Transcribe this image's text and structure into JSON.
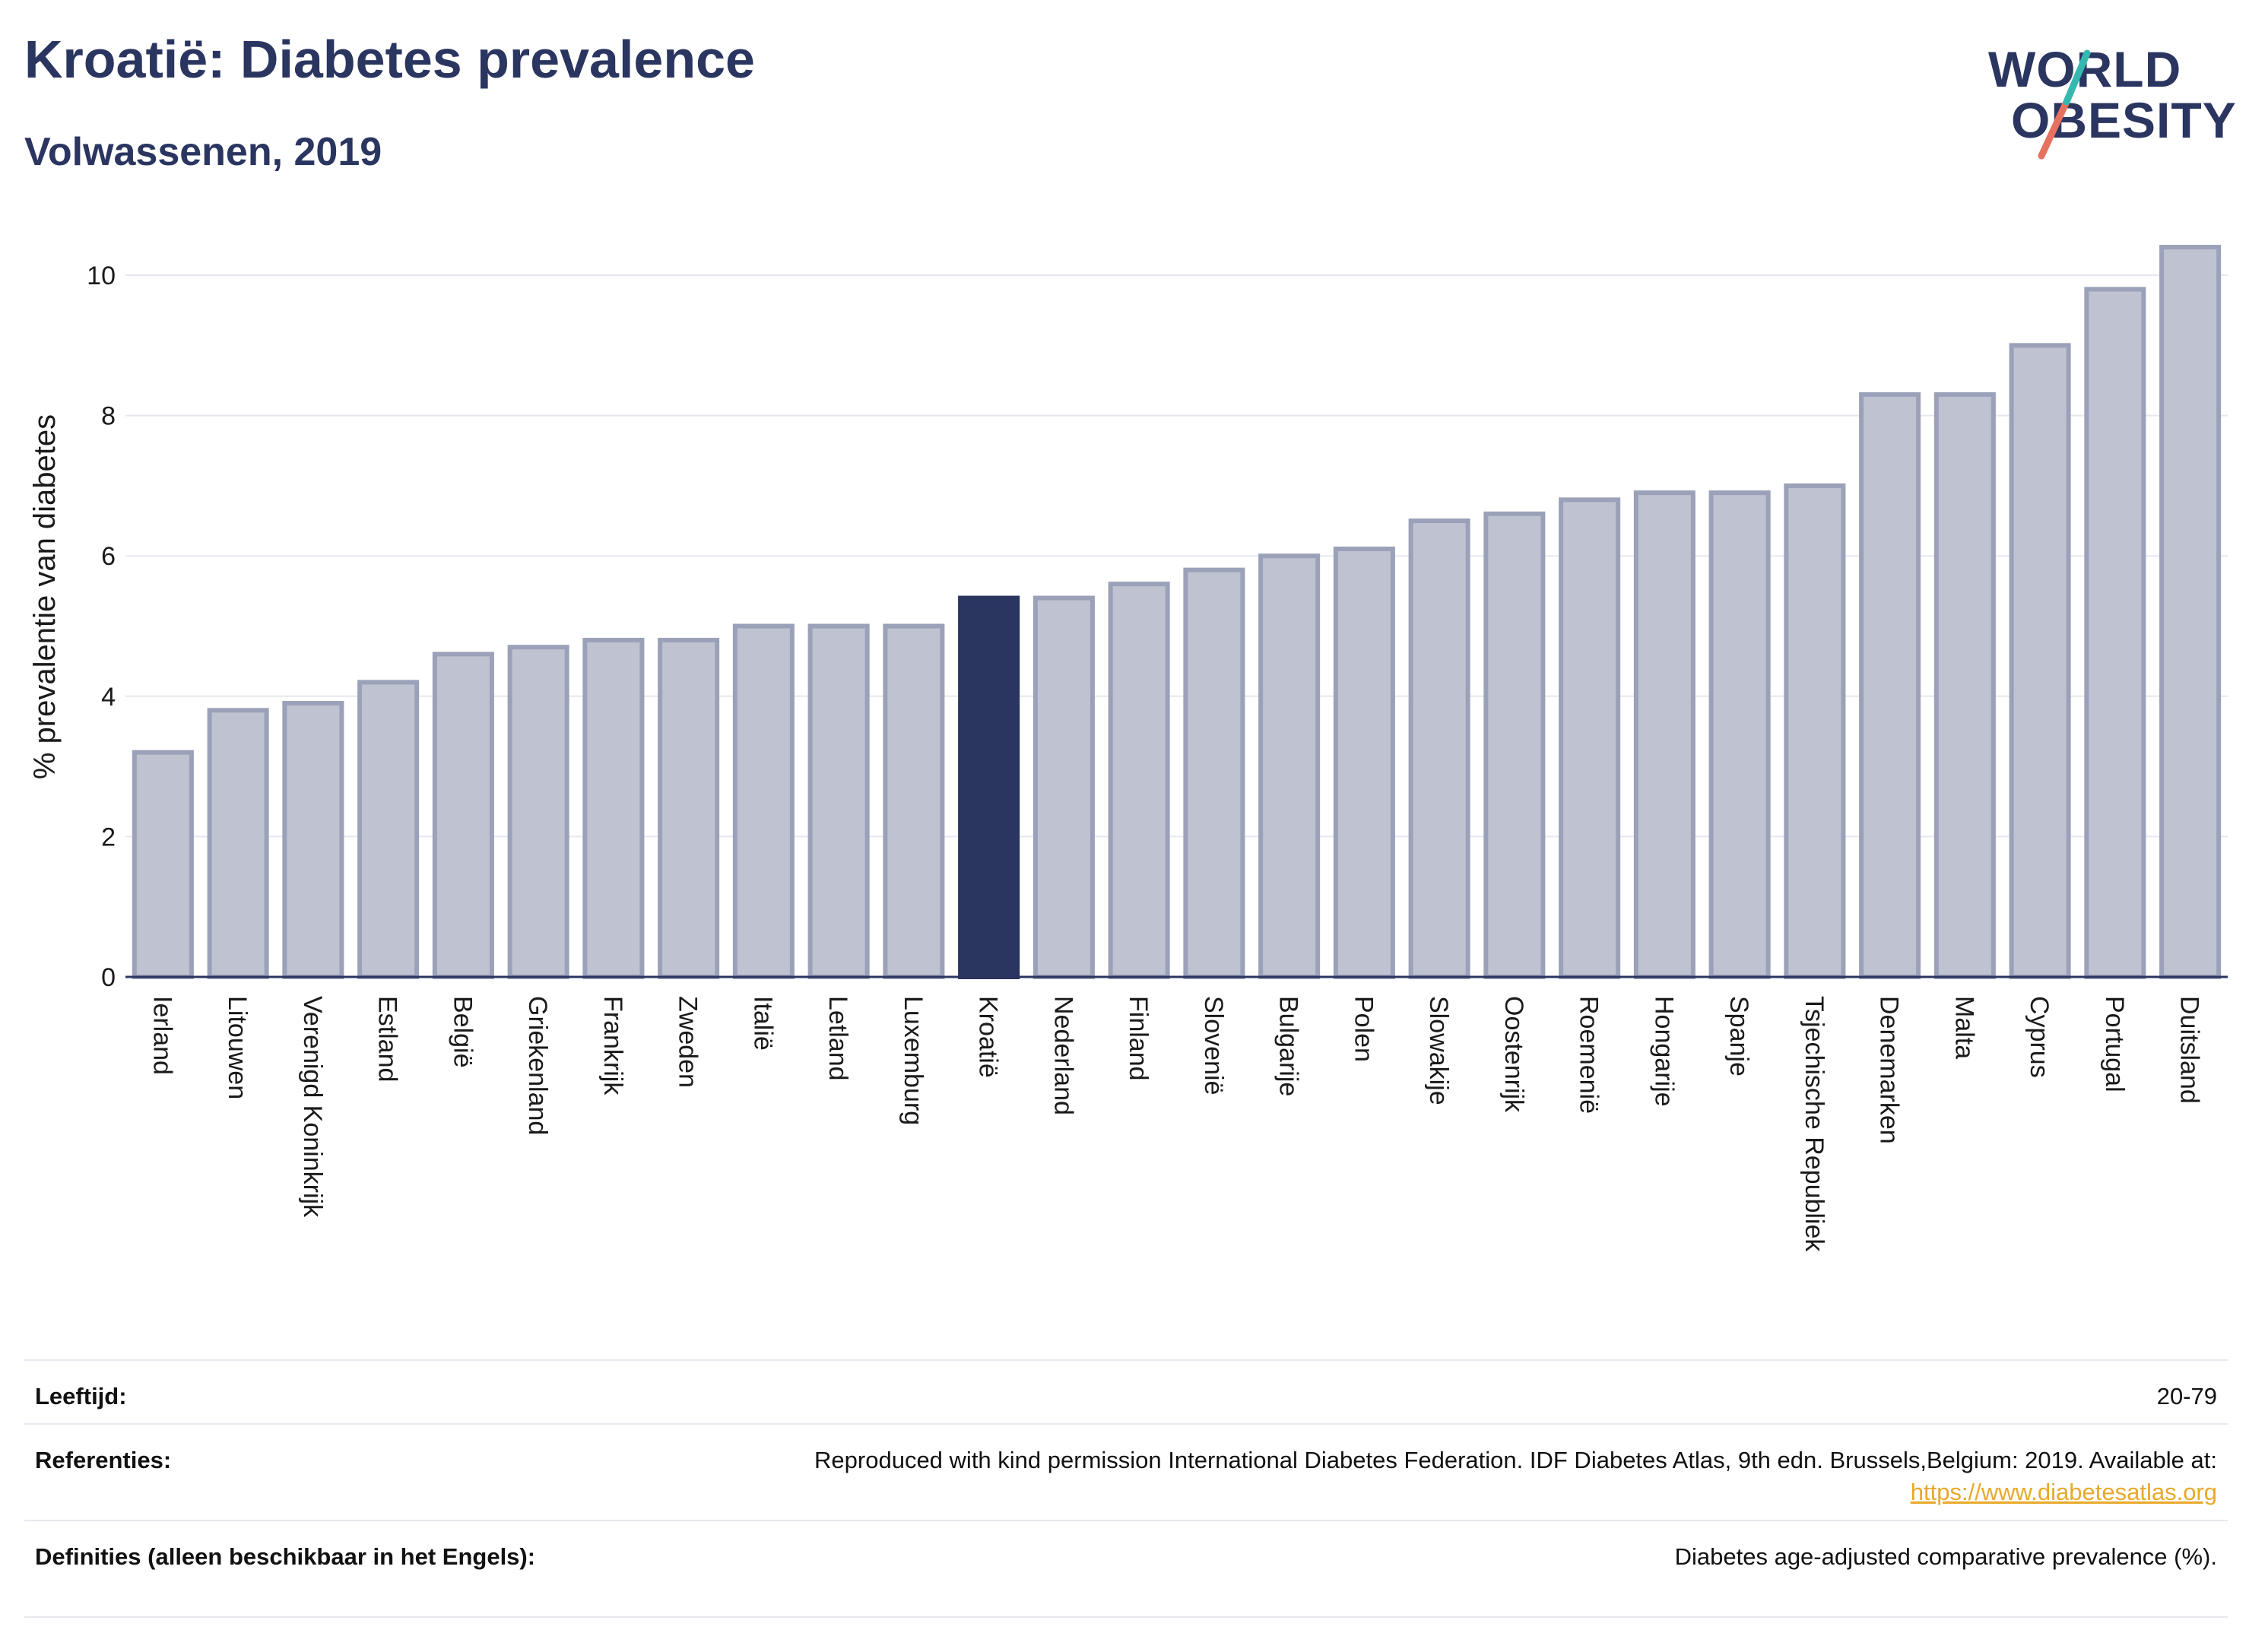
{
  "header": {
    "title": "Kroatië: Diabetes prevalence",
    "subtitle": "Volwassenen, 2019"
  },
  "logo": {
    "line1": "WORLD",
    "line2": "OBESITY"
  },
  "colors": {
    "bar": "#bfc2d0",
    "bar_stroke": "#9ba1b8",
    "highlight": "#2a3560",
    "grid": "#e6e8ef",
    "logo_teal": "#35b8b0",
    "logo_coral": "#e8705e"
  },
  "chart_data": {
    "type": "bar",
    "title": "Kroatië: Diabetes prevalence",
    "subtitle": "Volwassenen, 2019",
    "xlabel": "",
    "ylabel": "% prevalentie van diabetes",
    "ylim": [
      0,
      11
    ],
    "yticks": [
      0,
      2,
      4,
      6,
      8,
      10
    ],
    "grid": true,
    "highlight": "Kroatië",
    "categories": [
      "Ierland",
      "Litouwen",
      "Verenigd Koninkrijk",
      "Estland",
      "België",
      "Griekenland",
      "Frankrijk",
      "Zweden",
      "Italië",
      "Letland",
      "Luxemburg",
      "Kroatië",
      "Nederland",
      "Finland",
      "Slovenië",
      "Bulgarije",
      "Polen",
      "Slowakije",
      "Oostenrijk",
      "Roemenië",
      "Hongarije",
      "Spanje",
      "Tsjechische Republiek",
      "Denemarken",
      "Malta",
      "Cyprus",
      "Portugal",
      "Duitsland"
    ],
    "values": [
      3.2,
      3.8,
      3.9,
      4.2,
      4.6,
      4.7,
      4.8,
      4.8,
      5.0,
      5.0,
      5.0,
      5.4,
      5.4,
      5.6,
      5.8,
      6.0,
      6.1,
      6.5,
      6.6,
      6.8,
      6.9,
      6.9,
      7.0,
      8.3,
      8.3,
      9.0,
      9.8,
      10.4
    ]
  },
  "info": {
    "age_label": "Leeftijd:",
    "age_value": "20-79",
    "refs_label": "Referenties:",
    "refs_text": "Reproduced with kind permission International Diabetes Federation. IDF Diabetes Atlas, 9th edn. Brussels,Belgium: 2019. Available at:",
    "refs_link": "https://www.diabetesatlas.org",
    "defs_label": "Definities (alleen beschikbaar in het Engels):",
    "defs_value": "Diabetes age-adjusted comparative prevalence (%)."
  }
}
